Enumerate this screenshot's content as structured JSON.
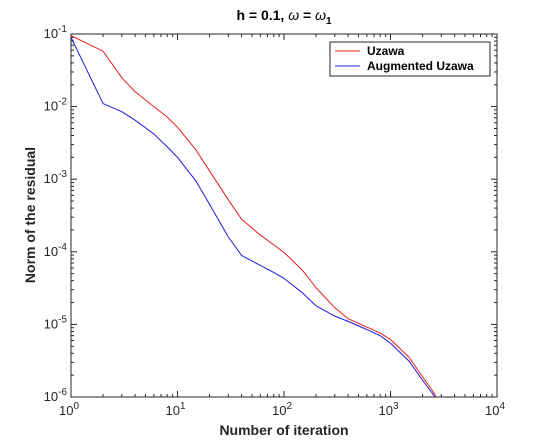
{
  "chart_data": {
    "type": "line",
    "title_left": "h = 0.1, ",
    "title_omega": "ω",
    "title_equals": " = ",
    "title_omega_rhs": "ω",
    "title_subscript": "1",
    "xlabel": "Number of iteration",
    "ylabel": "Norm of the residual",
    "x_scale": "log",
    "y_scale": "log",
    "xlim": [
      1,
      10000
    ],
    "ylim": [
      1e-06,
      0.1
    ],
    "x_ticks": [
      {
        "value": 1,
        "base": "10",
        "exp": "0"
      },
      {
        "value": 10,
        "base": "10",
        "exp": "1"
      },
      {
        "value": 100,
        "base": "10",
        "exp": "2"
      },
      {
        "value": 1000,
        "base": "10",
        "exp": "3"
      },
      {
        "value": 10000,
        "base": "10",
        "exp": "4"
      }
    ],
    "y_ticks": [
      {
        "value": 0.1,
        "base": "10",
        "exp": "-1"
      },
      {
        "value": 0.01,
        "base": "10",
        "exp": "-2"
      },
      {
        "value": 0.001,
        "base": "10",
        "exp": "-3"
      },
      {
        "value": 0.0001,
        "base": "10",
        "exp": "-4"
      },
      {
        "value": 1e-05,
        "base": "10",
        "exp": "-5"
      },
      {
        "value": 1e-06,
        "base": "10",
        "exp": "-6"
      }
    ],
    "grid": false,
    "legend_position": "top-right",
    "series": [
      {
        "name": "Uzawa",
        "color": "#e8201c",
        "points": [
          [
            1,
            0.095
          ],
          [
            2,
            0.058
          ],
          [
            3,
            0.025
          ],
          [
            4,
            0.016
          ],
          [
            6,
            0.01
          ],
          [
            8,
            0.0072
          ],
          [
            10,
            0.0052
          ],
          [
            15,
            0.0025
          ],
          [
            20,
            0.0013
          ],
          [
            30,
            0.00052
          ],
          [
            40,
            0.00028
          ],
          [
            60,
            0.00017
          ],
          [
            80,
            0.000125
          ],
          [
            100,
            9.8e-05
          ],
          [
            150,
            5.5e-05
          ],
          [
            200,
            3.2e-05
          ],
          [
            300,
            1.7e-05
          ],
          [
            400,
            1.2e-05
          ],
          [
            600,
            9.2e-06
          ],
          [
            800,
            7.6e-06
          ],
          [
            1000,
            6.2e-06
          ],
          [
            1500,
            3.5e-06
          ],
          [
            2000,
            1.9e-06
          ],
          [
            2500,
            1.2e-06
          ],
          [
            3000,
            7.5e-07
          ]
        ]
      },
      {
        "name": "Augmented Uzawa",
        "color": "#1c1ce0",
        "points": [
          [
            1,
            0.09
          ],
          [
            2,
            0.011
          ],
          [
            3,
            0.0085
          ],
          [
            4,
            0.0065
          ],
          [
            6,
            0.0042
          ],
          [
            8,
            0.0028
          ],
          [
            10,
            0.002
          ],
          [
            15,
            0.00093
          ],
          [
            20,
            0.00045
          ],
          [
            30,
            0.00016
          ],
          [
            40,
            8.9e-05
          ],
          [
            60,
            6.5e-05
          ],
          [
            80,
            5.2e-05
          ],
          [
            100,
            4.3e-05
          ],
          [
            150,
            2.7e-05
          ],
          [
            200,
            1.8e-05
          ],
          [
            300,
            1.3e-05
          ],
          [
            400,
            1.1e-05
          ],
          [
            600,
            8.5e-06
          ],
          [
            800,
            7e-06
          ],
          [
            1000,
            5.5e-06
          ],
          [
            1500,
            3.1e-06
          ],
          [
            2000,
            1.7e-06
          ],
          [
            2500,
            1.1e-06
          ],
          [
            3000,
            7e-07
          ]
        ]
      }
    ]
  }
}
